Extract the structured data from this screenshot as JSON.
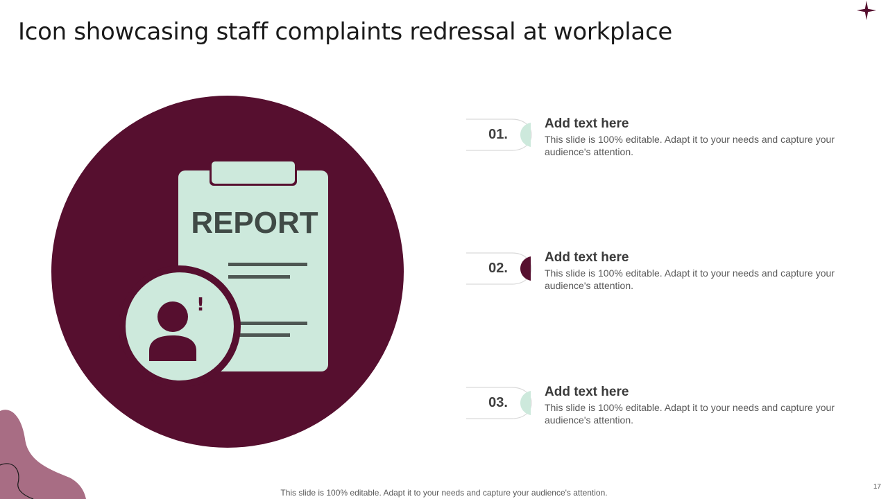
{
  "slide": {
    "title": "Icon showcasing staff complaints redressal at workplace",
    "footer": "This slide is 100% editable. Adapt it to your needs and capture your audience's attention.",
    "page_number": "17"
  },
  "graphic": {
    "report_label": "REPORT",
    "alert_mark": "!"
  },
  "items": [
    {
      "number": "01.",
      "title": "Add text here",
      "desc": "This slide is 100% editable. Adapt it to your needs and capture your audience's attention.",
      "accent": "#cde9dc"
    },
    {
      "number": "02.",
      "title": "Add text here",
      "desc": "This slide is 100% editable. Adapt it to your needs and capture your audience's attention.",
      "accent": "#560f2f"
    },
    {
      "number": "03.",
      "title": "Add text here",
      "desc": "This slide is 100% editable. Adapt it to your needs and capture your audience's attention.",
      "accent": "#cde9dc"
    }
  ],
  "colors": {
    "maroon": "#560f2f",
    "mint": "#cde9dc",
    "dark_gray": "#404a46",
    "blob": "#a86d84"
  },
  "icons": [
    "star-icon",
    "report-clipboard-icon",
    "user-alert-icon",
    "decorative-blob-icon"
  ]
}
